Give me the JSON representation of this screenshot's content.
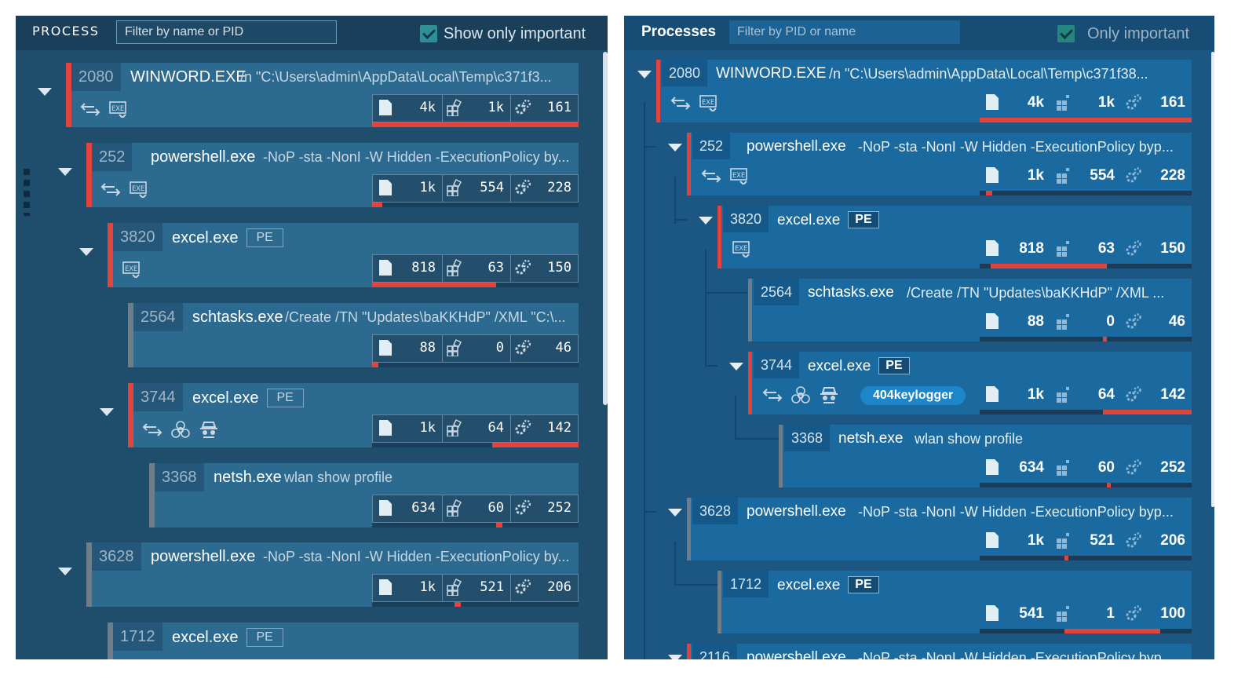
{
  "left": {
    "header": {
      "title": "PROCESS",
      "filter_placeholder": "Filter by name or PID",
      "checkbox_label": "Show only important"
    },
    "processes": [
      {
        "pid": "2080",
        "name": "WINWORD.EXE",
        "cmd": "/n \"C:\\Users\\admin\\AppData\\Local\\Temp\\c371f3...",
        "files": "4k",
        "registry": "1k",
        "modules": "161",
        "level": 1.0
      },
      {
        "pid": "252",
        "name": "powershell.exe",
        "cmd": "-NoP -sta -NonI -W Hidden -ExecutionPolicy by...",
        "files": "1k",
        "registry": "554",
        "modules": "228",
        "level": 0.05
      },
      {
        "pid": "3820",
        "name": "excel.exe",
        "badge": "PE",
        "files": "818",
        "registry": "63",
        "modules": "150",
        "level": 0.6
      },
      {
        "pid": "2564",
        "name": "schtasks.exe",
        "cmd": "/Create /TN \"Updates\\baKKHdP\" /XML \"C:\\...",
        "files": "88",
        "registry": "0",
        "modules": "46",
        "level": 0.03
      },
      {
        "pid": "3744",
        "name": "excel.exe",
        "badge": "PE",
        "files": "1k",
        "registry": "64",
        "modules": "142",
        "level": 0.42
      },
      {
        "pid": "3368",
        "name": "netsh.exe",
        "cmd": "wlan show profile",
        "files": "634",
        "registry": "60",
        "modules": "252",
        "level": 0.03
      },
      {
        "pid": "3628",
        "name": "powershell.exe",
        "cmd": "-NoP -sta -NonI -W Hidden -ExecutionPolicy by...",
        "files": "1k",
        "registry": "521",
        "modules": "206",
        "level": 0.03
      },
      {
        "pid": "1712",
        "name": "excel.exe",
        "badge": "PE"
      }
    ]
  },
  "right": {
    "header": {
      "title": "Processes",
      "filter_placeholder": "Filter by PID or name",
      "checkbox_label": "Only important"
    },
    "tag": "404keylogger",
    "processes": [
      {
        "pid": "2080",
        "name": "WINWORD.EXE",
        "cmd": "/n \"C:\\Users\\admin\\AppData\\Local\\Temp\\c371f38...",
        "files": "4k",
        "registry": "1k",
        "modules": "161",
        "level": 1.0
      },
      {
        "pid": "252",
        "name": "powershell.exe",
        "cmd": "-NoP -sta -NonI -W Hidden -ExecutionPolicy byp...",
        "files": "1k",
        "registry": "554",
        "modules": "228",
        "level": 0.03
      },
      {
        "pid": "3820",
        "name": "excel.exe",
        "badge": "PE",
        "files": "818",
        "registry": "63",
        "modules": "150",
        "level": 0.55
      },
      {
        "pid": "2564",
        "name": "schtasks.exe",
        "cmd": "/Create /TN \"Updates\\baKKHdP\" /XML ...",
        "files": "88",
        "registry": "0",
        "modules": "46",
        "level": 0.02
      },
      {
        "pid": "3744",
        "name": "excel.exe",
        "badge": "PE",
        "files": "1k",
        "registry": "64",
        "modules": "142",
        "level": 0.42
      },
      {
        "pid": "3368",
        "name": "netsh.exe",
        "cmd": "wlan show profile",
        "files": "634",
        "registry": "60",
        "modules": "252",
        "level": 0.02
      },
      {
        "pid": "3628",
        "name": "powershell.exe",
        "cmd": "-NoP -sta -NonI -W Hidden -ExecutionPolicy byp...",
        "files": "1k",
        "registry": "521",
        "modules": "206",
        "level": 0.02
      },
      {
        "pid": "1712",
        "name": "excel.exe",
        "badge": "PE",
        "files": "541",
        "registry": "1",
        "modules": "100",
        "level": 0.45
      },
      {
        "pid": "2116",
        "name": "powershell.exe",
        "cmd": "-NoP -sta -NonI -W Hidden -ExecutionPolicy byp..."
      }
    ]
  }
}
